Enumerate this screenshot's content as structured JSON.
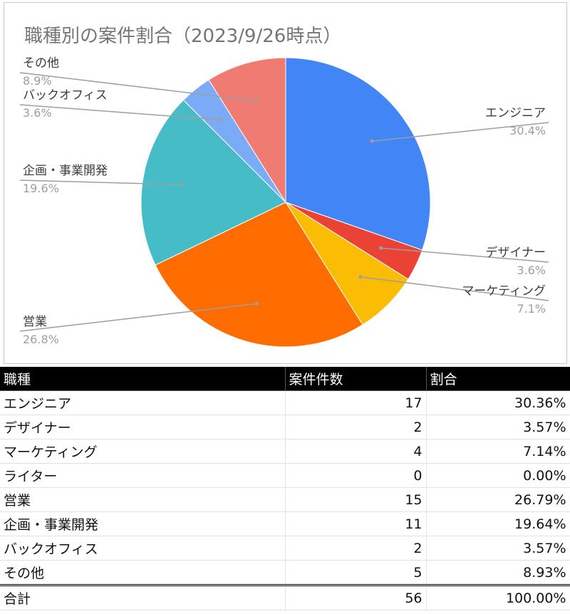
{
  "chart_data": {
    "type": "pie",
    "title": "職種別の案件割合（2023/9/26時点）",
    "slices": [
      {
        "label": "エンジニア",
        "value": 17,
        "pct_label": "30.4%",
        "color": "#4285f4",
        "side": "right"
      },
      {
        "label": "デザイナー",
        "value": 2,
        "pct_label": "3.6%",
        "color": "#ea4335",
        "side": "right"
      },
      {
        "label": "マーケティング",
        "value": 4,
        "pct_label": "7.1%",
        "color": "#fbbc04",
        "side": "right"
      },
      {
        "label": "営業",
        "value": 15,
        "pct_label": "26.8%",
        "color": "#ff6d01",
        "side": "left"
      },
      {
        "label": "企画・事業開発",
        "value": 11,
        "pct_label": "19.6%",
        "color": "#46bdc6",
        "side": "left"
      },
      {
        "label": "バックオフィス",
        "value": 2,
        "pct_label": "3.6%",
        "color": "#7baaf7",
        "side": "left"
      },
      {
        "label": "その他",
        "value": 5,
        "pct_label": "8.9%",
        "color": "#f07b72",
        "side": "left"
      }
    ]
  },
  "table": {
    "headers": [
      "職種",
      "案件件数",
      "割合"
    ],
    "rows": [
      [
        "エンジニア",
        "17",
        "30.36%"
      ],
      [
        "デザイナー",
        "2",
        "3.57%"
      ],
      [
        "マーケティング",
        "4",
        "7.14%"
      ],
      [
        "ライター",
        "0",
        "0.00%"
      ],
      [
        "営業",
        "15",
        "26.79%"
      ],
      [
        "企画・事業開発",
        "11",
        "19.64%"
      ],
      [
        "バックオフィス",
        "2",
        "3.57%"
      ],
      [
        "その他",
        "5",
        "8.93%"
      ]
    ],
    "total": [
      "合計",
      "56",
      "100.00%"
    ]
  }
}
